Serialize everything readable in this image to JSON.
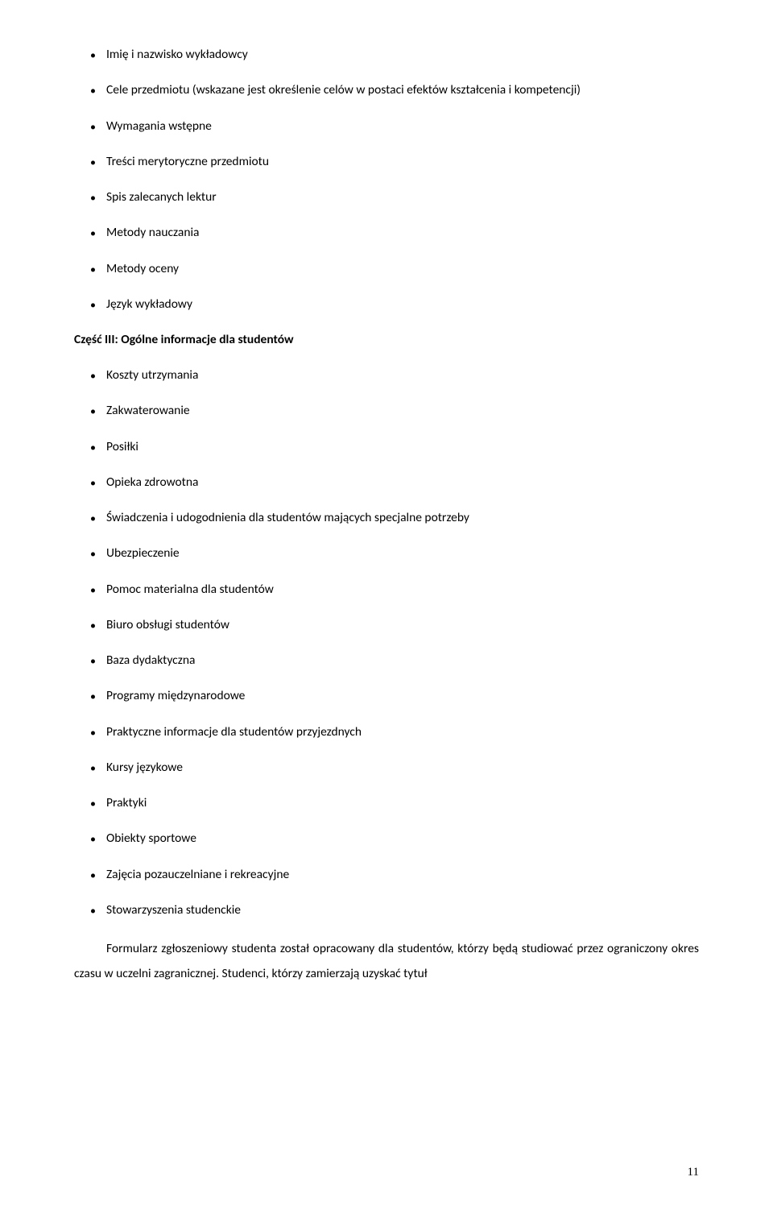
{
  "list1": {
    "items": [
      "Imię i nazwisko wykładowcy",
      "Cele przedmiotu (wskazane jest określenie celów w postaci efektów kształcenia i kompetencji)",
      "Wymagania wstępne",
      "Treści merytoryczne przedmiotu",
      "Spis zalecanych lektur",
      "Metody nauczania",
      "Metody oceny",
      "Język wykładowy"
    ]
  },
  "heading": "Część III: Ogólne informacje dla studentów",
  "list2": {
    "items": [
      "Koszty utrzymania",
      "Zakwaterowanie",
      "Posiłki",
      "Opieka zdrowotna",
      "Świadczenia i udogodnienia dla studentów mających specjalne potrzeby",
      "Ubezpieczenie",
      "Pomoc materialna dla studentów",
      "Biuro obsługi studentów",
      "Baza dydaktyczna",
      "Programy międzynarodowe",
      "Praktyczne informacje dla studentów przyjezdnych",
      "Kursy językowe",
      "Praktyki",
      "Obiekty sportowe",
      "Zajęcia pozauczelniane i rekreacyjne",
      "Stowarzyszenia studenckie"
    ]
  },
  "paragraph": "Formularz zgłoszeniowy studenta został opracowany dla studentów, którzy będą studiować przez ograniczony okres czasu w uczelni zagranicznej. Studenci, którzy zamierzają uzyskać tytuł",
  "pageNumber": "11"
}
